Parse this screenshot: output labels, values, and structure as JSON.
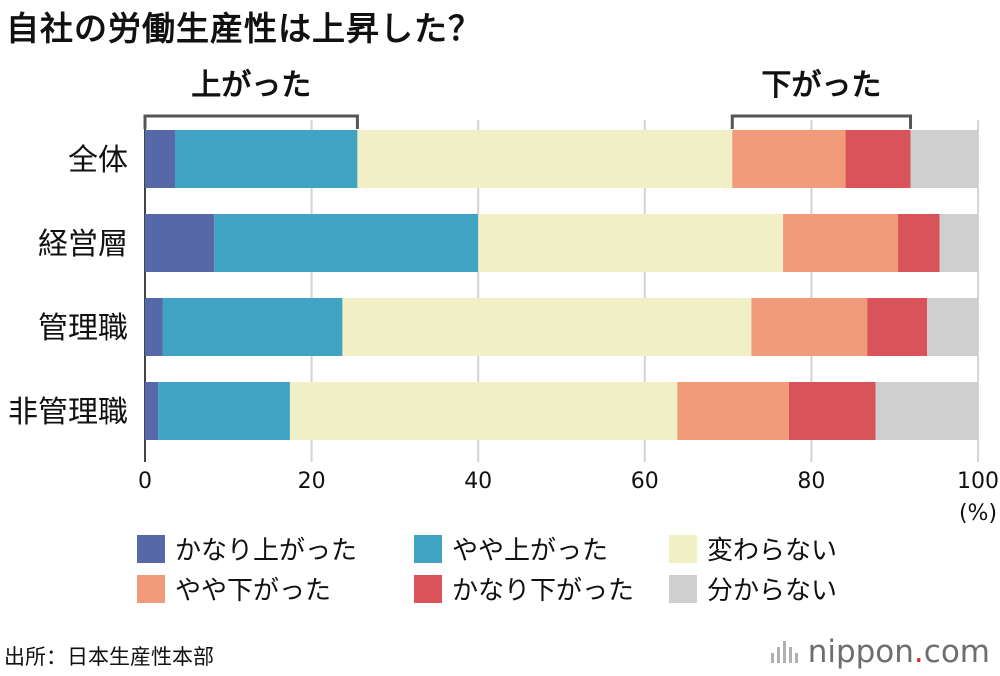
{
  "title": "自社の労働生産性は上昇した？",
  "source": "出所：日本生産性本部",
  "brand": {
    "name": "nippon",
    "dot": ".",
    "suffix": "com"
  },
  "colors": {
    "very_up": "#5768a8",
    "slightly_up": "#41a3c4",
    "unchanged": "#f1efc6",
    "slightly_down": "#f29b7b",
    "very_down": "#d9545a",
    "unknown": "#cfcfcf"
  },
  "chart_data": {
    "type": "bar",
    "orientation": "horizontal",
    "stacked": true,
    "categories": [
      "全体",
      "経営層",
      "管理職",
      "非管理職"
    ],
    "series": [
      {
        "name": "かなり上がった",
        "color_key": "very_up",
        "values": [
          3.6,
          8.3,
          2.1,
          1.6
        ]
      },
      {
        "name": "やや上がった",
        "color_key": "slightly_up",
        "values": [
          21.9,
          31.7,
          21.6,
          15.8
        ]
      },
      {
        "name": "変わらない",
        "color_key": "unchanged",
        "values": [
          45.0,
          36.6,
          49.1,
          46.5
        ]
      },
      {
        "name": "やや下がった",
        "color_key": "slightly_down",
        "values": [
          13.6,
          13.8,
          13.9,
          13.4
        ]
      },
      {
        "name": "かなり下がった",
        "color_key": "very_down",
        "values": [
          7.8,
          5.0,
          7.2,
          10.4
        ]
      },
      {
        "name": "分からない",
        "color_key": "unknown",
        "values": [
          8.1,
          4.6,
          6.1,
          12.3
        ]
      }
    ],
    "xlim": [
      0,
      100
    ],
    "xticks": [
      0,
      20,
      40,
      60,
      80,
      100
    ],
    "x_unit": "(%)",
    "grid": true,
    "annotations": [
      {
        "label": "上がった",
        "from": 0,
        "to": 25.5
      },
      {
        "label": "下がった",
        "from": 70.5,
        "to": 91.9
      }
    ]
  }
}
